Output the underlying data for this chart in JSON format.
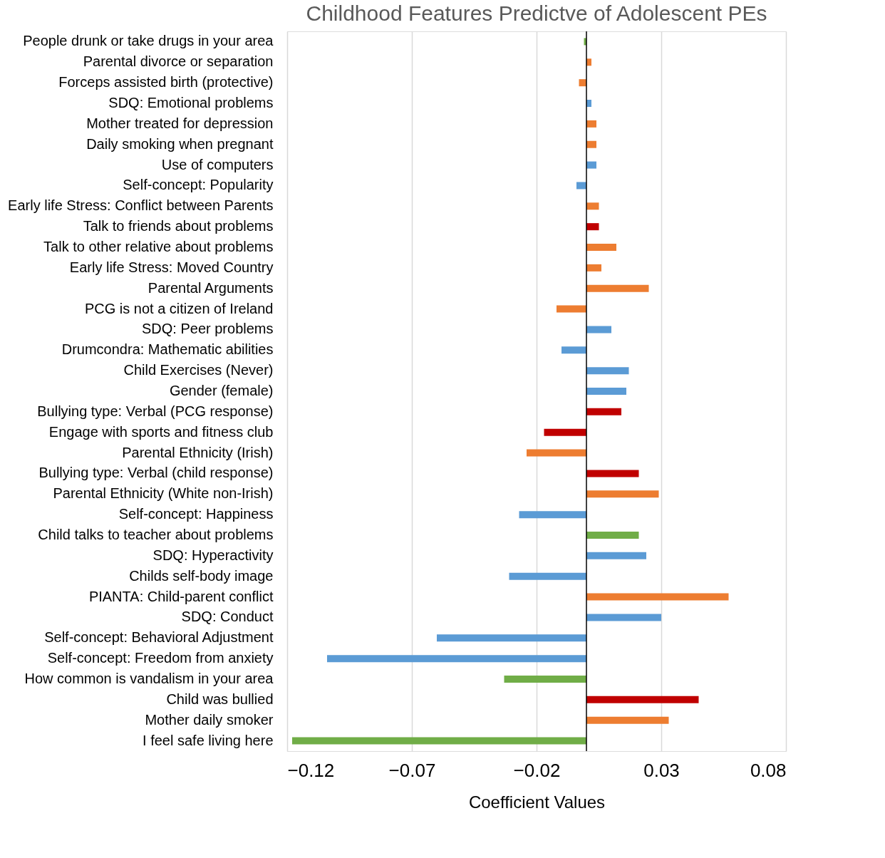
{
  "chart_data": {
    "type": "bar",
    "orientation": "horizontal",
    "title": "Childhood Features Predictve of Adolescent PEs",
    "xlabel": "Coefficient Values",
    "categories": [
      "People drunk or take drugs in your area",
      "Parental divorce or separation",
      "Forceps assisted birth (protective)",
      "SDQ: Emotional problems",
      "Mother treated for depression",
      "Daily smoking when pregnant",
      "Use of computers",
      "Self-concept: Popularity",
      "Early life Stress: Conflict between Parents",
      "Talk to friends about problems",
      "Talk to other relative about problems",
      "Early life Stress: Moved Country",
      "Parental Arguments",
      "PCG is not a citizen of Ireland",
      "SDQ: Peer problems",
      "Drumcondra: Mathematic abilities",
      "Child Exercises (Never)",
      "Gender (female)",
      "Bullying type: Verbal (PCG response)",
      "Engage with sports and fitness club",
      "Parental Ethnicity (Irish)",
      "Bullying type: Verbal (child response)",
      "Parental Ethnicity (White non-Irish)",
      "Self-concept: Happiness",
      "Child talks to teacher about problems",
      "SDQ: Hyperactivity",
      "Childs self-body image",
      "PIANTA: Child-parent conflict",
      "SDQ: Conduct",
      "Self-concept: Behavioral Adjustment",
      "Self-concept: Freedom from anxiety",
      "How common is vandalism in your area",
      "Child was bullied",
      "Mother daily smoker",
      "I feel safe living here"
    ],
    "values": [
      -0.001,
      0.002,
      -0.003,
      0.002,
      0.004,
      0.004,
      0.004,
      -0.004,
      0.005,
      0.005,
      0.012,
      0.006,
      0.025,
      -0.012,
      0.01,
      -0.01,
      0.017,
      0.016,
      0.014,
      -0.017,
      -0.024,
      0.021,
      0.029,
      -0.027,
      0.021,
      0.024,
      -0.031,
      0.057,
      0.03,
      -0.06,
      -0.104,
      -0.033,
      0.045,
      0.033,
      -0.118
    ],
    "colors": [
      "#70ad47",
      "#ed7d31",
      "#ed7d31",
      "#5b9bd5",
      "#ed7d31",
      "#ed7d31",
      "#5b9bd5",
      "#5b9bd5",
      "#ed7d31",
      "#c00000",
      "#ed7d31",
      "#ed7d31",
      "#ed7d31",
      "#ed7d31",
      "#5b9bd5",
      "#5b9bd5",
      "#5b9bd5",
      "#5b9bd5",
      "#c00000",
      "#c00000",
      "#ed7d31",
      "#c00000",
      "#ed7d31",
      "#5b9bd5",
      "#70ad47",
      "#5b9bd5",
      "#5b9bd5",
      "#ed7d31",
      "#5b9bd5",
      "#5b9bd5",
      "#5b9bd5",
      "#70ad47",
      "#c00000",
      "#ed7d31",
      "#70ad47"
    ],
    "xlim": [
      -0.12,
      0.08
    ],
    "xticks": [
      -0.12,
      -0.07,
      -0.02,
      0.03,
      0.08
    ],
    "grid": "x",
    "ref_lines": [
      {
        "axis": "x",
        "value": 0,
        "color": "#000000"
      }
    ]
  }
}
